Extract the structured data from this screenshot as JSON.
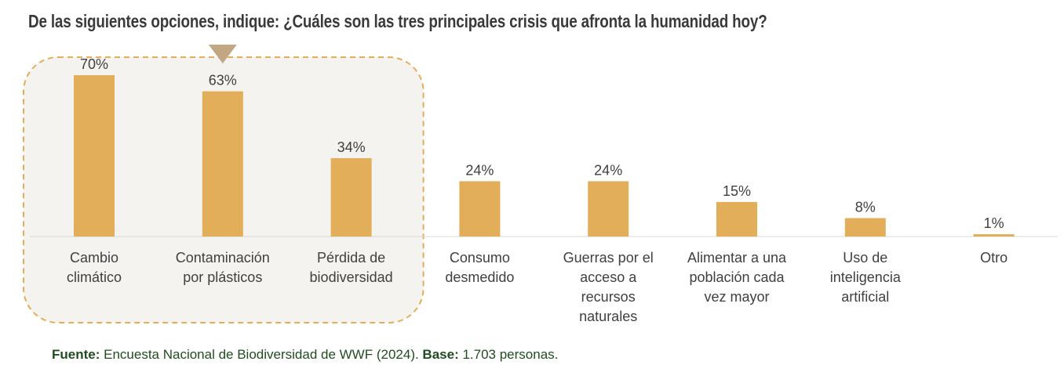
{
  "title": "De las siguientes opciones, indique: ¿Cuáles son las tres principales crisis que afronta la humanidad hoy?",
  "colors": {
    "bar": "#E2AE5A",
    "highlight_fill": "#F4F3F0",
    "highlight_border": "#E2AE5A",
    "pointer": "#C2A882",
    "baseline": "#D9D9D9",
    "label_text": "#404040",
    "footer_text": "#1F4D1F"
  },
  "chart_data": {
    "type": "bar",
    "categories": [
      [
        "Cambio",
        "climático"
      ],
      [
        "Contaminación",
        "por plásticos"
      ],
      [
        "Pérdida de",
        "biodiversidad"
      ],
      [
        "Consumo",
        "desmedido"
      ],
      [
        "Guerras por el",
        "acceso a",
        "recursos",
        "naturales"
      ],
      [
        "Alimentar a una",
        "población cada",
        "vez mayor"
      ],
      [
        "Uso de",
        "inteligencia",
        "artificial"
      ],
      [
        "Otro"
      ]
    ],
    "values": [
      70,
      63,
      34,
      24,
      24,
      15,
      8,
      1
    ],
    "value_labels": [
      "70%",
      "63%",
      "34%",
      "24%",
      "24%",
      "15%",
      "8%",
      "1%"
    ],
    "ylim": [
      0,
      70
    ],
    "grid": false,
    "highlighted_categories": [
      0,
      1,
      2
    ]
  },
  "footer": {
    "source_label": "Fuente:",
    "source_text": " Encuesta Nacional de Biodiversidad de WWF (2024). ",
    "base_label": "Base:",
    "base_text": " 1.703 personas."
  }
}
